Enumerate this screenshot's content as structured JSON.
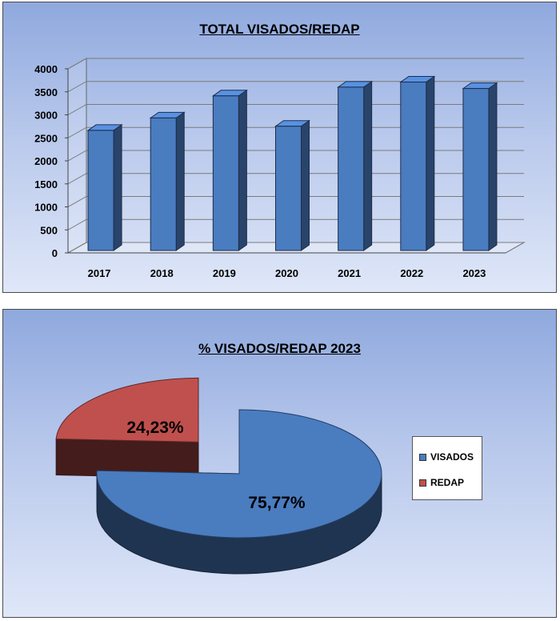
{
  "chart_data": [
    {
      "type": "bar",
      "title": "TOTAL VISADOS/REDAP",
      "categories": [
        "2017",
        "2018",
        "2019",
        "2020",
        "2021",
        "2022",
        "2023"
      ],
      "values": [
        2610,
        2880,
        3360,
        2700,
        3550,
        3660,
        3520
      ],
      "yticks": [
        "0",
        "500",
        "1000",
        "1500",
        "2000",
        "2500",
        "3000",
        "3500",
        "4000"
      ],
      "ylim": [
        0,
        4000
      ],
      "grid": true,
      "bar_color": "#4a7cc0"
    },
    {
      "type": "pie",
      "title": "% VISADOS/REDAP 2023",
      "slices": [
        {
          "name": "VISADOS",
          "value": 75.77,
          "label": "75,77%",
          "color": "#4a7cc0"
        },
        {
          "name": "REDAP",
          "value": 24.23,
          "label": "24,23%",
          "color": "#c0504d"
        }
      ],
      "legend_position": "right"
    }
  ]
}
